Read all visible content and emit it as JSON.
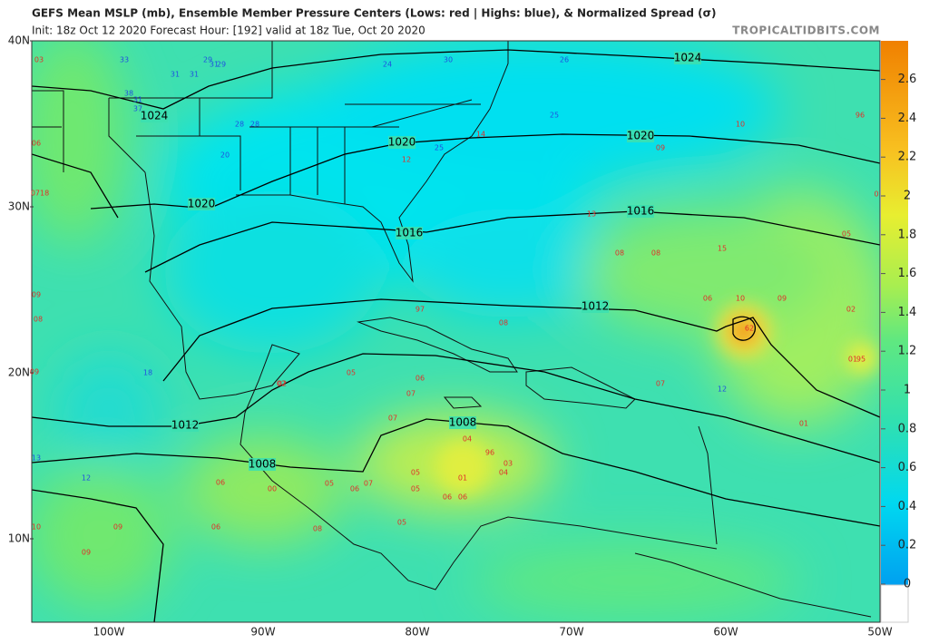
{
  "header": {
    "title": "GEFS Mean MSLP (mb), Ensemble Member Pressure Centers (Lows: red | Highs: blue), & Normalized Spread (σ)",
    "subtitle": "Init: 18z Oct 12 2020   Forecast Hour: [192]   valid at 18z Tue, Oct 20 2020",
    "site": "TROPICALTIDBITS.COM"
  },
  "map": {
    "lat_labels": [
      "40N",
      "30N",
      "20N",
      "10N"
    ],
    "lon_labels": [
      "100W",
      "90W",
      "80W",
      "70W",
      "60W",
      "50W"
    ],
    "isobar_labels": [
      "1024",
      "1024",
      "1020",
      "1020",
      "1020",
      "1016",
      "1016",
      "1012",
      "1012",
      "1008",
      "1008"
    ],
    "lows": [
      "03",
      "06",
      "0718",
      "09",
      "08",
      "09",
      "14",
      "12",
      "09",
      "10",
      "96",
      "15",
      "0",
      "05",
      "13",
      "08",
      "08",
      "06",
      "10",
      "09",
      "02",
      "62",
      "95",
      "97",
      "08",
      "05",
      "06",
      "02",
      "07",
      "07",
      "07",
      "01",
      "04",
      "96",
      "03",
      "04",
      "01",
      "05",
      "05",
      "06",
      "06",
      "00",
      "06",
      "05",
      "06",
      "08",
      "05",
      "09",
      "10",
      "09",
      "06",
      "07",
      "02",
      "01"
    ],
    "highs": [
      "33",
      "31",
      "31",
      "29",
      "31",
      "29",
      "38",
      "31",
      "37",
      "28",
      "28",
      "24",
      "30",
      "26",
      "25",
      "25",
      "20",
      "12",
      "13",
      "12",
      "18"
    ]
  },
  "colorbar": {
    "ticks": [
      0,
      0.2,
      0.4,
      0.6,
      0.8,
      1,
      1.2,
      1.4,
      1.6,
      1.8,
      2,
      2.2,
      2.4,
      2.6
    ]
  }
}
